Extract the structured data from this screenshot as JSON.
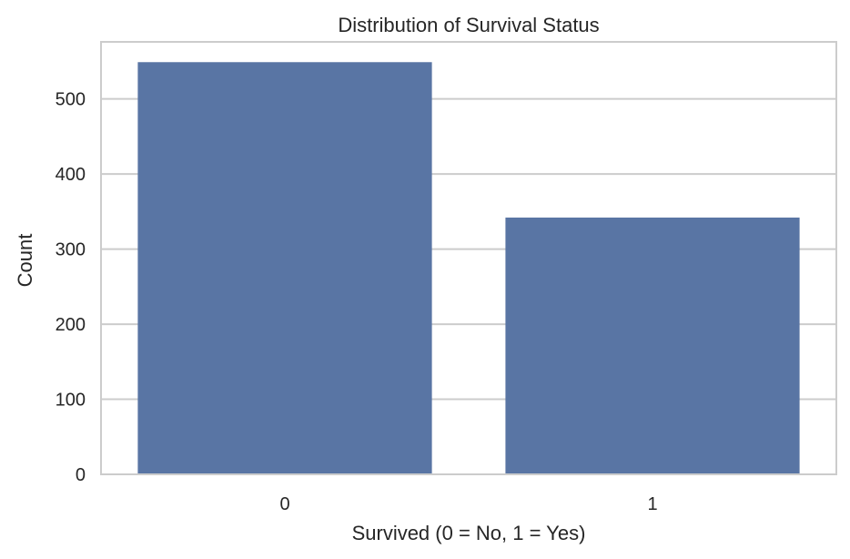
{
  "chart_data": {
    "type": "bar",
    "title": "Distribution of Survival Status",
    "xlabel": "Survived (0 = No, 1 = Yes)",
    "ylabel": "Count",
    "categories": [
      "0",
      "1"
    ],
    "values": [
      549,
      342
    ],
    "ylim": [
      0,
      576
    ],
    "yticks": [
      0,
      100,
      200,
      300,
      400,
      500
    ],
    "grid": true,
    "bar_color": "#5975a4"
  }
}
